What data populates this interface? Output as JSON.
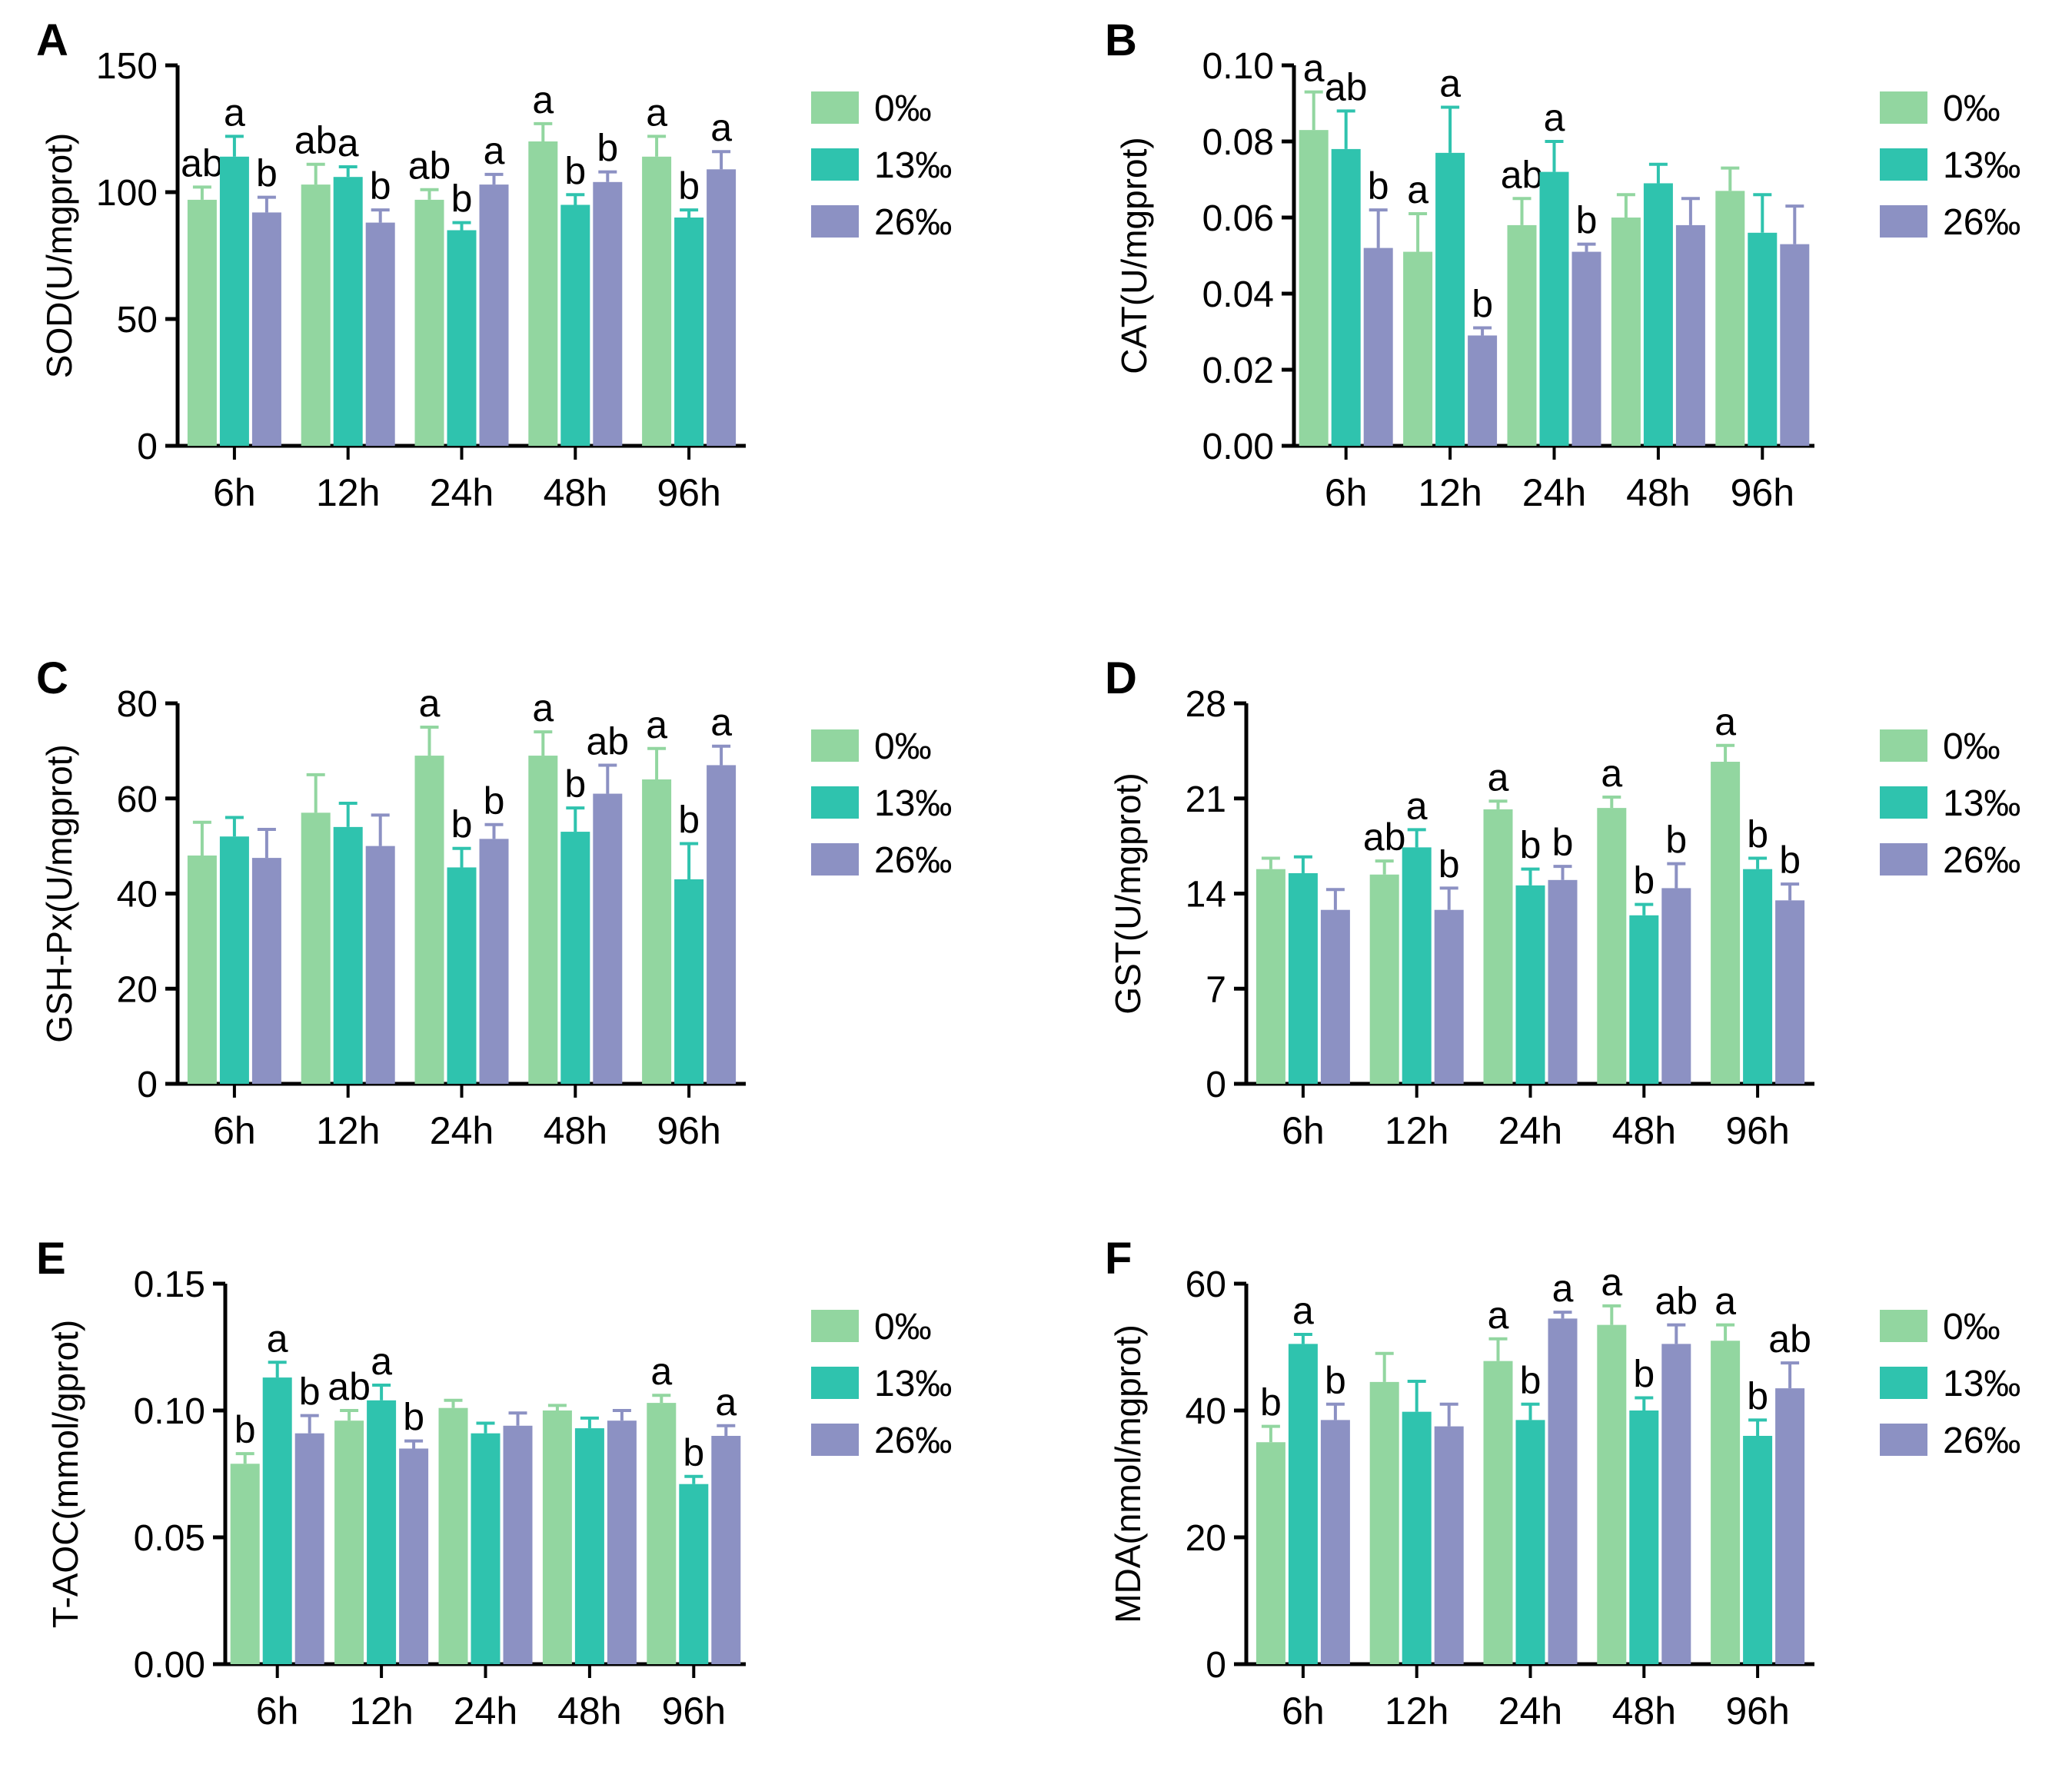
{
  "legend": {
    "items": [
      {
        "label": "0‰",
        "color": "#92d6a0"
      },
      {
        "label": "13‰",
        "color": "#2fc3ae"
      },
      {
        "label": "26‰",
        "color": "#8c91c3"
      }
    ]
  },
  "chart_data": [
    {
      "panel": "A",
      "type": "bar",
      "title": "",
      "ylabel": "SOD(U/mgprot)",
      "xlabel": "",
      "ylim": [
        0,
        150
      ],
      "yticks": [
        0,
        50,
        100,
        150
      ],
      "tick_decimals": 0,
      "grid": false,
      "legend_position": "right",
      "categories": [
        "6h",
        "12h",
        "24h",
        "48h",
        "96h"
      ],
      "series": [
        {
          "name": "0‰",
          "color": "#92d6a0",
          "values": [
            97,
            103,
            97,
            120,
            114
          ],
          "errors": [
            5,
            8,
            4,
            7,
            8
          ],
          "letters": [
            "ab",
            "ab",
            "ab",
            "a",
            "a"
          ]
        },
        {
          "name": "13‰",
          "color": "#2fc3ae",
          "values": [
            114,
            106,
            85,
            95,
            90
          ],
          "errors": [
            8,
            4,
            3,
            4,
            3
          ],
          "letters": [
            "a",
            "a",
            "b",
            "b",
            "b"
          ]
        },
        {
          "name": "26‰",
          "color": "#8c91c3",
          "values": [
            92,
            88,
            103,
            104,
            109
          ],
          "errors": [
            6,
            5,
            4,
            4,
            7
          ],
          "letters": [
            "b",
            "b",
            "a",
            "b",
            "a"
          ]
        }
      ]
    },
    {
      "panel": "B",
      "type": "bar",
      "title": "",
      "ylabel": "CAT(U/mgprot)",
      "xlabel": "",
      "ylim": [
        0,
        0.1
      ],
      "yticks": [
        0,
        0.02,
        0.04,
        0.06,
        0.08,
        0.1
      ],
      "tick_decimals": 2,
      "grid": false,
      "legend_position": "right",
      "categories": [
        "6h",
        "12h",
        "24h",
        "48h",
        "96h"
      ],
      "series": [
        {
          "name": "0‰",
          "color": "#92d6a0",
          "values": [
            0.083,
            0.051,
            0.058,
            0.06,
            0.067
          ],
          "errors": [
            0.01,
            0.01,
            0.007,
            0.006,
            0.006
          ],
          "letters": [
            "a",
            "a",
            "ab",
            "",
            ""
          ]
        },
        {
          "name": "13‰",
          "color": "#2fc3ae",
          "values": [
            0.078,
            0.077,
            0.072,
            0.069,
            0.056
          ],
          "errors": [
            0.01,
            0.012,
            0.008,
            0.005,
            0.01
          ],
          "letters": [
            "ab",
            "a",
            "a",
            "",
            ""
          ]
        },
        {
          "name": "26‰",
          "color": "#8c91c3",
          "values": [
            0.052,
            0.029,
            0.051,
            0.058,
            0.053
          ],
          "errors": [
            0.01,
            0.002,
            0.002,
            0.007,
            0.01
          ],
          "letters": [
            "b",
            "b",
            "b",
            "",
            ""
          ]
        }
      ]
    },
    {
      "panel": "C",
      "type": "bar",
      "title": "",
      "ylabel": "GSH-Px(U/mgprot)",
      "xlabel": "",
      "ylim": [
        0,
        80
      ],
      "yticks": [
        0,
        20,
        40,
        60,
        80
      ],
      "tick_decimals": 0,
      "grid": false,
      "legend_position": "right",
      "categories": [
        "6h",
        "12h",
        "24h",
        "48h",
        "96h"
      ],
      "series": [
        {
          "name": "0‰",
          "color": "#92d6a0",
          "values": [
            48,
            57,
            69,
            69,
            64
          ],
          "errors": [
            7,
            8,
            6,
            5,
            6.5
          ],
          "letters": [
            "",
            "",
            "a",
            "a",
            "a"
          ]
        },
        {
          "name": "13‰",
          "color": "#2fc3ae",
          "values": [
            52,
            54,
            45.5,
            53,
            43
          ],
          "errors": [
            4,
            5,
            4,
            5,
            7.5
          ],
          "letters": [
            "",
            "",
            "b",
            "b",
            "b"
          ]
        },
        {
          "name": "26‰",
          "color": "#8c91c3",
          "values": [
            47.5,
            50,
            51.5,
            61,
            67
          ],
          "errors": [
            6,
            6.5,
            3,
            6,
            4
          ],
          "letters": [
            "",
            "",
            "b",
            "ab",
            "a"
          ]
        }
      ]
    },
    {
      "panel": "D",
      "type": "bar",
      "title": "",
      "ylabel": "GST(U/mgprot)",
      "xlabel": "",
      "ylim": [
        0,
        28
      ],
      "yticks": [
        0,
        7,
        14,
        21,
        28
      ],
      "tick_decimals": 0,
      "grid": false,
      "legend_position": "right",
      "categories": [
        "6h",
        "12h",
        "24h",
        "48h",
        "96h"
      ],
      "series": [
        {
          "name": "0‰",
          "color": "#92d6a0",
          "values": [
            15.8,
            15.4,
            20.2,
            20.3,
            23.7
          ],
          "errors": [
            0.8,
            1.0,
            0.6,
            0.8,
            1.2
          ],
          "letters": [
            "",
            "ab",
            "a",
            "a",
            "a"
          ]
        },
        {
          "name": "13‰",
          "color": "#2fc3ae",
          "values": [
            15.5,
            17.4,
            14.6,
            12.4,
            15.8
          ],
          "errors": [
            1.2,
            1.3,
            1.2,
            0.8,
            0.8
          ],
          "letters": [
            "",
            "a",
            "b",
            "b",
            "b"
          ]
        },
        {
          "name": "26‰",
          "color": "#8c91c3",
          "values": [
            12.8,
            12.8,
            15.0,
            14.4,
            13.5
          ],
          "errors": [
            1.5,
            1.6,
            1.0,
            1.8,
            1.2
          ],
          "letters": [
            "",
            "b",
            "b",
            "b",
            "b"
          ]
        }
      ]
    },
    {
      "panel": "E",
      "type": "bar",
      "title": "",
      "ylabel": "T-AOC(mmol/gprot)",
      "xlabel": "",
      "ylim": [
        0,
        0.15
      ],
      "yticks": [
        0,
        0.05,
        0.1,
        0.15
      ],
      "tick_decimals": 2,
      "grid": false,
      "legend_position": "right",
      "categories": [
        "6h",
        "12h",
        "24h",
        "48h",
        "96h"
      ],
      "series": [
        {
          "name": "0‰",
          "color": "#92d6a0",
          "values": [
            0.079,
            0.096,
            0.101,
            0.1,
            0.103
          ],
          "errors": [
            0.004,
            0.004,
            0.003,
            0.002,
            0.003
          ],
          "letters": [
            "b",
            "ab",
            "",
            "",
            "a"
          ]
        },
        {
          "name": "13‰",
          "color": "#2fc3ae",
          "values": [
            0.113,
            0.104,
            0.091,
            0.093,
            0.071
          ],
          "errors": [
            0.006,
            0.006,
            0.004,
            0.004,
            0.003
          ],
          "letters": [
            "a",
            "a",
            "",
            "",
            "b"
          ]
        },
        {
          "name": "26‰",
          "color": "#8c91c3",
          "values": [
            0.091,
            0.085,
            0.094,
            0.096,
            0.09
          ],
          "errors": [
            0.007,
            0.003,
            0.005,
            0.004,
            0.004
          ],
          "letters": [
            "b",
            "b",
            "",
            "",
            "a"
          ]
        }
      ]
    },
    {
      "panel": "F",
      "type": "bar",
      "title": "",
      "ylabel": "MDA(nmol/mgprot)",
      "xlabel": "",
      "ylim": [
        0,
        60
      ],
      "yticks": [
        0,
        20,
        40,
        60
      ],
      "tick_decimals": 0,
      "grid": false,
      "legend_position": "right",
      "categories": [
        "6h",
        "12h",
        "24h",
        "48h",
        "96h"
      ],
      "series": [
        {
          "name": "0‰",
          "color": "#92d6a0",
          "values": [
            35,
            44.5,
            47.8,
            53.5,
            51
          ],
          "errors": [
            2.5,
            4.5,
            3.5,
            3,
            2.5
          ],
          "letters": [
            "b",
            "",
            "a",
            "a",
            "a"
          ]
        },
        {
          "name": "13‰",
          "color": "#2fc3ae",
          "values": [
            50.5,
            39.8,
            38.5,
            40,
            36
          ],
          "errors": [
            1.5,
            4.8,
            2.5,
            2,
            2.5
          ],
          "letters": [
            "a",
            "",
            "b",
            "b",
            "b"
          ]
        },
        {
          "name": "26‰",
          "color": "#8c91c3",
          "values": [
            38.5,
            37.5,
            54.5,
            50.5,
            43.5
          ],
          "errors": [
            2.5,
            3.5,
            1,
            3,
            4
          ],
          "letters": [
            "b",
            "",
            "a",
            "ab",
            "ab"
          ]
        }
      ]
    }
  ]
}
